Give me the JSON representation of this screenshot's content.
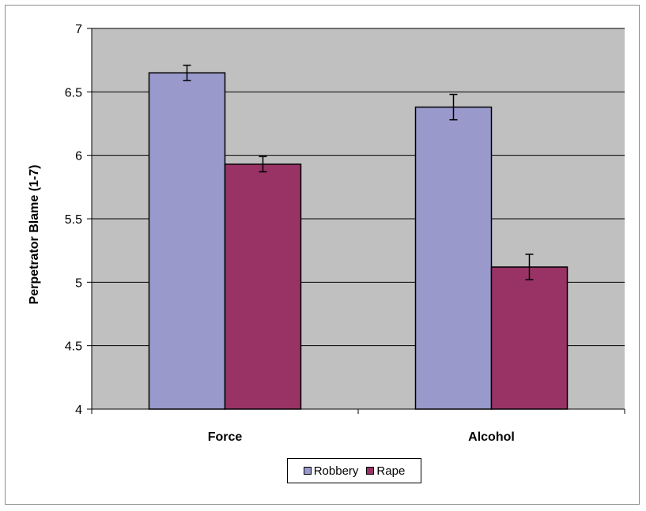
{
  "chart_data": {
    "type": "bar",
    "categories": [
      "Force",
      "Alcohol"
    ],
    "series": [
      {
        "name": "Robbery",
        "values": [
          6.65,
          6.38
        ],
        "errors": [
          0.06,
          0.1
        ],
        "color": "#9999cc"
      },
      {
        "name": "Rape",
        "values": [
          5.93,
          5.12
        ],
        "errors": [
          0.06,
          0.1
        ],
        "color": "#993366"
      }
    ],
    "ylabel": "Perpetrator Blame (1-7)",
    "ylim": [
      4,
      7
    ],
    "yticks": [
      "4",
      "4.5",
      "5",
      "5.5",
      "6",
      "6.5",
      "7"
    ],
    "grid": true,
    "plot_background": "#c0c0c0",
    "legend_position": "bottom-center"
  }
}
